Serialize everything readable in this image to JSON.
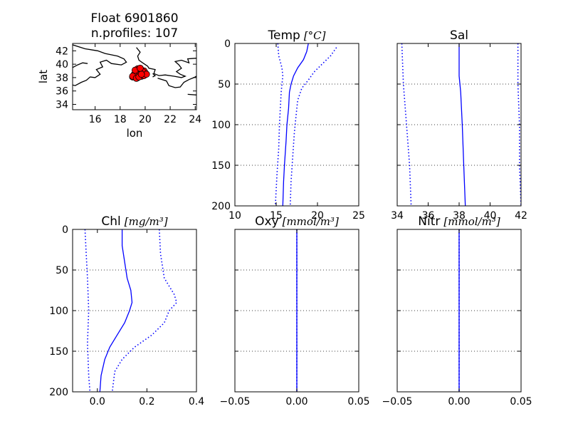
{
  "colors": {
    "profile": "#0000ff",
    "grid": "#000000",
    "coast": "#000000",
    "float_fill": "#ff0000"
  },
  "chart_data": [
    {
      "type": "map",
      "title_lines": [
        "Float 6901860",
        "n.profiles: 107"
      ],
      "xlabel": "lon",
      "ylabel": "lat",
      "xlim": [
        14.2,
        24.1
      ],
      "ylim": [
        33.2,
        43.1
      ],
      "xticks": [
        16,
        18,
        20,
        22,
        24
      ],
      "yticks": [
        34,
        36,
        38,
        40,
        42
      ],
      "float_positions": [
        [
          19.0,
          38.1
        ],
        [
          19.2,
          38.3
        ],
        [
          19.4,
          38.0
        ],
        [
          19.6,
          38.4
        ],
        [
          19.8,
          38.6
        ],
        [
          20.0,
          38.7
        ],
        [
          19.9,
          39.0
        ],
        [
          19.6,
          39.2
        ],
        [
          19.4,
          39.0
        ],
        [
          19.5,
          38.8
        ],
        [
          19.7,
          38.2
        ],
        [
          19.9,
          38.3
        ],
        [
          19.3,
          38.5
        ],
        [
          19.1,
          38.4
        ],
        [
          19.6,
          38.7
        ],
        [
          19.8,
          38.9
        ],
        [
          19.4,
          39.3
        ],
        [
          19.2,
          39.1
        ],
        [
          20.1,
          38.5
        ],
        [
          19.0,
          38.2
        ],
        [
          19.3,
          37.9
        ],
        [
          19.5,
          38.1
        ],
        [
          19.7,
          38.5
        ],
        [
          19.6,
          39.4
        ]
      ],
      "coastlines": [
        [
          [
            14.2,
            42.9
          ],
          [
            15.2,
            42.3
          ],
          [
            16.2,
            42.0
          ],
          [
            16.8,
            41.6
          ],
          [
            17.8,
            41.2
          ],
          [
            18.3,
            40.8
          ],
          [
            18.5,
            40.3
          ],
          [
            18.1,
            39.9
          ],
          [
            17.3,
            40.1
          ],
          [
            16.9,
            40.6
          ],
          [
            16.4,
            40.3
          ],
          [
            16.6,
            39.6
          ],
          [
            16.1,
            39.2
          ],
          [
            16.4,
            38.5
          ],
          [
            16.0,
            38.0
          ],
          [
            15.6,
            38.1
          ],
          [
            15.3,
            37.6
          ],
          [
            14.9,
            37.3
          ],
          [
            14.4,
            36.8
          ],
          [
            14.2,
            36.9
          ]
        ],
        [
          [
            14.2,
            39.5
          ],
          [
            14.6,
            39.9
          ],
          [
            15.0,
            40.2
          ],
          [
            15.4,
            40.1
          ]
        ],
        [
          [
            19.3,
            42.5
          ],
          [
            19.6,
            41.8
          ],
          [
            19.4,
            41.2
          ],
          [
            19.5,
            40.6
          ],
          [
            19.8,
            40.2
          ],
          [
            20.2,
            39.7
          ],
          [
            20.3,
            39.4
          ],
          [
            20.8,
            39.2
          ],
          [
            20.7,
            38.6
          ],
          [
            21.1,
            38.3
          ],
          [
            21.6,
            38.4
          ],
          [
            22.3,
            38.2
          ],
          [
            22.9,
            38.0
          ],
          [
            23.2,
            38.2
          ],
          [
            22.8,
            38.5
          ],
          [
            22.5,
            38.9
          ],
          [
            22.9,
            39.4
          ],
          [
            22.7,
            39.9
          ],
          [
            22.4,
            40.4
          ],
          [
            22.9,
            40.6
          ],
          [
            23.5,
            40.2
          ],
          [
            23.4,
            40.8
          ],
          [
            24.1,
            40.9
          ]
        ],
        [
          [
            21.0,
            37.9
          ],
          [
            21.7,
            37.5
          ],
          [
            21.9,
            36.8
          ],
          [
            22.4,
            36.5
          ],
          [
            22.8,
            36.6
          ],
          [
            23.1,
            37.3
          ],
          [
            23.5,
            37.7
          ],
          [
            23.9,
            38.0
          ],
          [
            24.1,
            38.2
          ]
        ],
        [
          [
            23.4,
            35.5
          ],
          [
            24.1,
            35.4
          ]
        ],
        [
          [
            20.6,
            38.6
          ],
          [
            20.8,
            38.3
          ],
          [
            20.6,
            38.1
          ]
        ]
      ]
    },
    {
      "type": "line",
      "title": "Temp",
      "title_units": "[°C]",
      "xlim": [
        10,
        25
      ],
      "ylim": [
        0,
        200
      ],
      "y_inverted": true,
      "xticks": [
        10,
        15,
        20,
        25
      ],
      "yticks": [
        0,
        50,
        100,
        150,
        200
      ],
      "y_grid": true,
      "series": [
        {
          "style": "solid",
          "points": [
            [
              18.9,
              0
            ],
            [
              18.7,
              10
            ],
            [
              18.3,
              20
            ],
            [
              17.6,
              30
            ],
            [
              17.1,
              40
            ],
            [
              16.8,
              50
            ],
            [
              16.6,
              60
            ],
            [
              16.5,
              80
            ],
            [
              16.3,
              100
            ],
            [
              16.2,
              120
            ],
            [
              16.0,
              150
            ],
            [
              15.9,
              170
            ],
            [
              15.8,
              200
            ]
          ]
        },
        {
          "style": "dotted",
          "points": [
            [
              15.2,
              0
            ],
            [
              15.3,
              15
            ],
            [
              15.7,
              30
            ],
            [
              15.8,
              40
            ],
            [
              15.6,
              60
            ],
            [
              15.5,
              80
            ],
            [
              15.4,
              100
            ],
            [
              15.3,
              130
            ],
            [
              15.1,
              160
            ],
            [
              14.9,
              200
            ]
          ]
        },
        {
          "style": "dotted",
          "points": [
            [
              22.3,
              5
            ],
            [
              21.6,
              15
            ],
            [
              20.6,
              25
            ],
            [
              19.6,
              35
            ],
            [
              18.9,
              45
            ],
            [
              18.1,
              55
            ],
            [
              17.6,
              70
            ],
            [
              17.4,
              90
            ],
            [
              17.2,
              110
            ],
            [
              17.0,
              140
            ],
            [
              16.8,
              170
            ],
            [
              16.7,
              200
            ]
          ]
        }
      ]
    },
    {
      "type": "line",
      "title": "Sal",
      "xlim": [
        34,
        42
      ],
      "ylim": [
        0,
        200
      ],
      "y_inverted": true,
      "xticks": [
        34,
        36,
        38,
        40,
        42
      ],
      "yticks": [
        0,
        50,
        100,
        150,
        200
      ],
      "y_grid": true,
      "series": [
        {
          "style": "solid",
          "points": [
            [
              38.0,
              0
            ],
            [
              38.0,
              40
            ],
            [
              38.1,
              60
            ],
            [
              38.2,
              100
            ],
            [
              38.3,
              150
            ],
            [
              38.4,
              200
            ]
          ]
        },
        {
          "style": "dotted",
          "points": [
            [
              34.3,
              0
            ],
            [
              34.4,
              50
            ],
            [
              34.6,
              100
            ],
            [
              34.8,
              150
            ],
            [
              34.9,
              200
            ]
          ]
        },
        {
          "style": "dotted",
          "points": [
            [
              41.8,
              0
            ],
            [
              41.8,
              50
            ],
            [
              41.9,
              100
            ],
            [
              41.9,
              150
            ],
            [
              42.0,
              200
            ]
          ]
        }
      ]
    },
    {
      "type": "line",
      "title": "Chl",
      "title_units": "[mg/m³]",
      "xlim": [
        -0.1,
        0.4
      ],
      "ylim": [
        0,
        200
      ],
      "y_inverted": true,
      "xticks": [
        0.0,
        0.2,
        0.4
      ],
      "xtick_labels": [
        "0.0",
        "0.2",
        "0.4"
      ],
      "yticks": [
        0,
        50,
        100,
        150,
        200
      ],
      "y_grid": true,
      "series": [
        {
          "style": "solid",
          "points": [
            [
              0.1,
              0
            ],
            [
              0.1,
              20
            ],
            [
              0.11,
              40
            ],
            [
              0.12,
              60
            ],
            [
              0.135,
              75
            ],
            [
              0.14,
              90
            ],
            [
              0.13,
              100
            ],
            [
              0.11,
              115
            ],
            [
              0.08,
              130
            ],
            [
              0.05,
              145
            ],
            [
              0.03,
              160
            ],
            [
              0.015,
              180
            ],
            [
              0.01,
              200
            ]
          ]
        },
        {
          "style": "dotted",
          "points": [
            [
              -0.05,
              0
            ],
            [
              -0.045,
              30
            ],
            [
              -0.04,
              60
            ],
            [
              -0.035,
              100
            ],
            [
              -0.04,
              140
            ],
            [
              -0.035,
              180
            ],
            [
              -0.03,
              200
            ]
          ]
        },
        {
          "style": "dotted",
          "points": [
            [
              0.25,
              0
            ],
            [
              0.255,
              30
            ],
            [
              0.27,
              60
            ],
            [
              0.31,
              80
            ],
            [
              0.32,
              90
            ],
            [
              0.29,
              100
            ],
            [
              0.27,
              115
            ],
            [
              0.22,
              130
            ],
            [
              0.15,
              145
            ],
            [
              0.1,
              160
            ],
            [
              0.07,
              175
            ],
            [
              0.06,
              200
            ]
          ]
        }
      ]
    },
    {
      "type": "line",
      "title": "Oxy",
      "title_units": "[mmol/m³]",
      "xlim": [
        -0.05,
        0.05
      ],
      "ylim": [
        0,
        200
      ],
      "y_inverted": true,
      "xticks": [
        -0.05,
        0.0,
        0.05
      ],
      "xtick_labels": [
        "−0.05",
        "0.00",
        "0.05"
      ],
      "yticks": [
        0,
        50,
        100,
        150,
        200
      ],
      "y_grid": true,
      "series": [
        {
          "style": "solid",
          "points": [
            [
              0.0,
              0
            ],
            [
              0.0,
              200
            ]
          ]
        },
        {
          "style": "dotted",
          "points": [
            [
              0.0,
              0
            ],
            [
              0.0,
              200
            ]
          ]
        }
      ]
    },
    {
      "type": "line",
      "title": "Nitr",
      "title_units": "[mmol/m³]",
      "xlim": [
        -0.05,
        0.05
      ],
      "ylim": [
        0,
        200
      ],
      "y_inverted": true,
      "xticks": [
        -0.05,
        0.0,
        0.05
      ],
      "xtick_labels": [
        "−0.05",
        "0.00",
        "0.05"
      ],
      "yticks": [
        0,
        50,
        100,
        150,
        200
      ],
      "y_grid": true,
      "series": [
        {
          "style": "solid",
          "points": [
            [
              0.0,
              0
            ],
            [
              0.0,
              200
            ]
          ]
        },
        {
          "style": "dotted",
          "points": [
            [
              0.0,
              0
            ],
            [
              0.0,
              200
            ]
          ]
        }
      ]
    }
  ]
}
